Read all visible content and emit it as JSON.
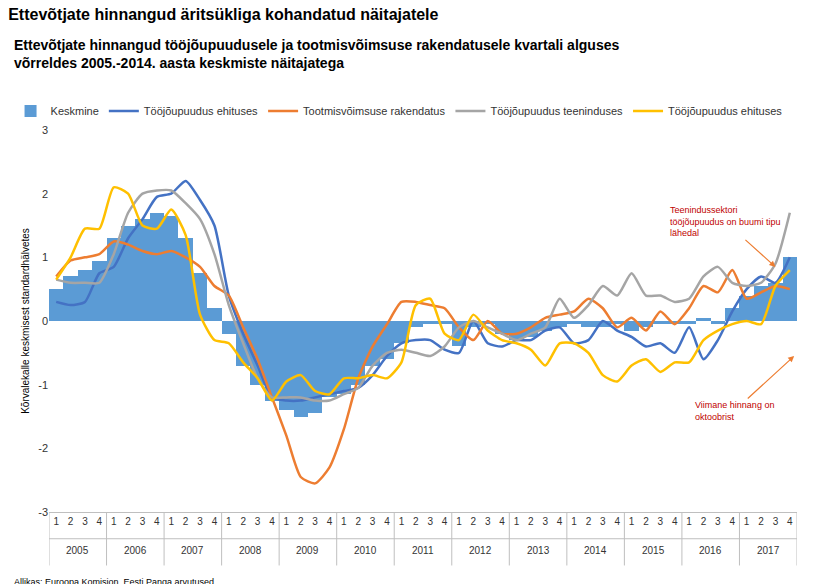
{
  "chart_data": {
    "type": "bar",
    "title": "Ettevõtjate hinnangud äritsükliga kohandatud näitajatele",
    "subtitle": [
      "Ettevõtjate hinnangud tööjõupuudusele ja tootmisvõimsuse rakendatusele kvartali alguses",
      "võrreldes 2005.-2014. aasta keskmiste näitajatega"
    ],
    "y_label": "Kõrvalekalle keskmisest standardhälvetes",
    "source": "Allikas: Euroopa Komisjon, Eesti Panga arvutused.",
    "categories": [
      "1",
      "2",
      "3",
      "4",
      "1",
      "2",
      "3",
      "4",
      "1",
      "2",
      "3",
      "4",
      "1",
      "2",
      "3",
      "4",
      "1",
      "2",
      "3",
      "4",
      "1",
      "2",
      "3",
      "4",
      "1",
      "2",
      "3",
      "4",
      "1",
      "2",
      "3",
      "4",
      "1",
      "2",
      "3",
      "4",
      "1",
      "2",
      "3",
      "4",
      "1",
      "2",
      "3",
      "4",
      "1",
      "2",
      "3",
      "4",
      "1",
      "2",
      "3",
      "4"
    ],
    "years": [
      "2005",
      "2006",
      "2007",
      "2008",
      "2009",
      "2010",
      "2011",
      "2012",
      "2013",
      "2014",
      "2015",
      "2016",
      "2017"
    ],
    "series": [
      {
        "name": "Keskmine",
        "type": "bar",
        "color": "#5b9bd5",
        "values": [
          0.5,
          0.7,
          0.8,
          0.95,
          1.3,
          1.5,
          1.6,
          1.7,
          1.65,
          1.3,
          0.75,
          0.2,
          -0.2,
          -0.7,
          -1.0,
          -1.25,
          -1.4,
          -1.5,
          -1.45,
          -1.2,
          -1.15,
          -1.0,
          -0.7,
          -0.6,
          -0.35,
          -0.1,
          -0.05,
          -0.05,
          -0.4,
          -0.1,
          -0.05,
          -0.2,
          -0.3,
          -0.25,
          -0.15,
          -0.1,
          -0.05,
          -0.1,
          -0.1,
          -0.05,
          -0.15,
          -0.1,
          -0.05,
          -0.05,
          -0.05,
          0.05,
          -0.05,
          0.2,
          0.4,
          0.55,
          0.6,
          1.0
        ]
      },
      {
        "name": "Tööjõupuudus ehituses",
        "type": "line",
        "color": "#4472c4",
        "values": [
          0.3,
          0.25,
          0.3,
          0.75,
          0.85,
          1.3,
          1.6,
          1.95,
          2.0,
          2.2,
          1.9,
          1.5,
          0.4,
          -0.2,
          -0.7,
          -1.2,
          -1.25,
          -1.25,
          -1.2,
          -1.15,
          -1.1,
          -1.05,
          -0.85,
          -0.55,
          -0.35,
          -0.3,
          -0.3,
          -0.45,
          -0.5,
          0.0,
          -0.35,
          -0.4,
          -0.3,
          -0.3,
          -0.15,
          -0.1,
          -0.35,
          -0.3,
          0.0,
          -0.15,
          -0.25,
          -0.4,
          -0.35,
          -0.5,
          -0.1,
          -0.6,
          -0.3,
          0.15,
          0.5,
          0.7,
          0.6,
          1.0
        ]
      },
      {
        "name": "Tootmisvõimsuse rakendatus",
        "type": "line",
        "color": "#ed7d31",
        "values": [
          0.7,
          0.95,
          1.0,
          1.05,
          1.25,
          1.2,
          1.1,
          1.05,
          1.1,
          1.0,
          0.85,
          0.55,
          0.4,
          -0.1,
          -0.6,
          -1.2,
          -1.8,
          -2.45,
          -2.55,
          -2.3,
          -1.7,
          -0.9,
          -0.4,
          -0.05,
          0.3,
          0.3,
          0.25,
          0.2,
          -0.1,
          -0.3,
          0.0,
          -0.2,
          -0.2,
          -0.1,
          0.05,
          0.1,
          0.15,
          0.35,
          0.2,
          -0.1,
          0.05,
          -0.15,
          0.15,
          -0.05,
          0.2,
          0.55,
          0.45,
          0.8,
          0.35,
          0.45,
          0.55,
          0.5
        ]
      },
      {
        "name": "Tööjõupuudus teeninduses",
        "type": "line",
        "color": "#a5a5a5",
        "values": [
          0.65,
          0.6,
          0.6,
          0.6,
          1.05,
          1.7,
          2.0,
          2.05,
          2.05,
          1.85,
          1.6,
          1.05,
          0.25,
          -0.35,
          -0.9,
          -1.2,
          -1.2,
          -1.2,
          -1.25,
          -1.25,
          -1.15,
          -1.05,
          -0.7,
          -0.5,
          -0.45,
          -0.5,
          -0.55,
          -0.4,
          -0.1,
          0.0,
          -0.1,
          -0.2,
          -0.3,
          -0.2,
          -0.1,
          0.35,
          0.05,
          0.25,
          0.55,
          0.4,
          0.75,
          0.4,
          0.4,
          0.3,
          0.35,
          0.7,
          0.85,
          0.6,
          0.55,
          0.6,
          0.9,
          1.7
        ]
      },
      {
        "name": "Tööjõupuudus ehituses",
        "type": "line",
        "color": "#ffc000",
        "values": [
          0.65,
          1.0,
          1.45,
          1.45,
          2.1,
          2.0,
          1.5,
          1.45,
          1.75,
          1.35,
          0.1,
          -0.3,
          -0.35,
          -0.65,
          -0.9,
          -1.25,
          -0.95,
          -0.85,
          -1.1,
          -1.15,
          -0.9,
          -0.9,
          -0.85,
          -0.9,
          -0.65,
          0.25,
          0.35,
          -0.2,
          -0.3,
          0.1,
          -0.15,
          -0.3,
          -0.35,
          -0.45,
          -0.7,
          -0.35,
          -0.35,
          -0.5,
          -0.85,
          -0.95,
          -0.7,
          -0.6,
          -0.8,
          -0.65,
          -0.65,
          -0.3,
          -0.15,
          -0.05,
          0.0,
          -0.05,
          0.55,
          0.8
        ]
      }
    ],
    "annotations": [
      {
        "lines": [
          "Teenindussektori",
          "tööjõupuudus on buumi tipu",
          "lähedal"
        ],
        "x": 50,
        "y": 0.85,
        "color": "#c00000"
      },
      {
        "lines": [
          "Viimane hinnang on",
          "oktoobrist"
        ],
        "x": 51.3,
        "y": -0.55,
        "color": "#c00000"
      }
    ],
    "ylim": [
      -3,
      3
    ],
    "yticks": [
      -3,
      -2,
      -1,
      0,
      1,
      2,
      3
    ],
    "grid": false,
    "legend": "top"
  }
}
